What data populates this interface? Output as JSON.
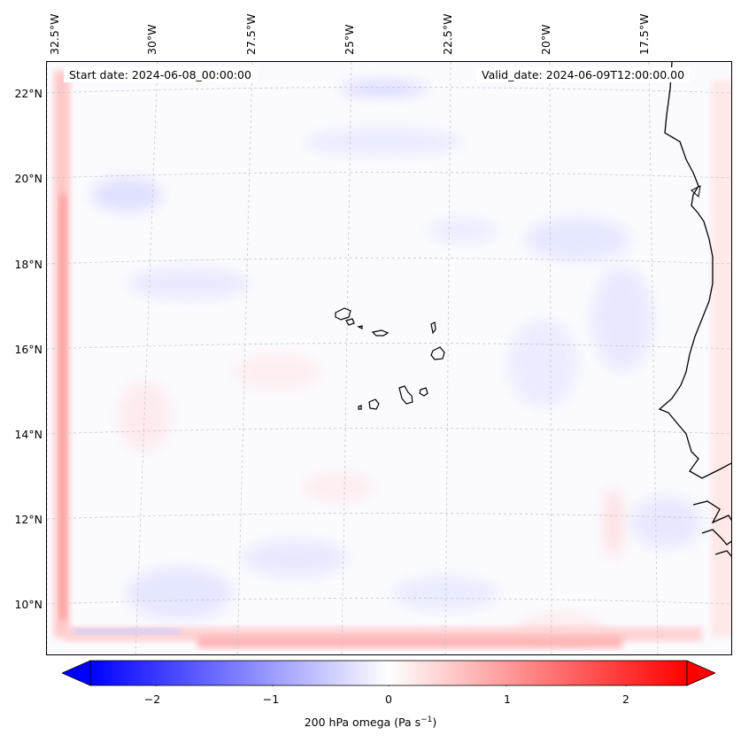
{
  "map": {
    "start_date_label": "Start date: 2024-06-08_00:00:00",
    "valid_date_label": "Valid_date: 2024-06-09T12:00:00.00",
    "lon_labels": [
      "32.5°W",
      "30°W",
      "27.5°W",
      "25°W",
      "22.5°W",
      "20°W",
      "17.5°W"
    ],
    "lat_labels": [
      "22°N",
      "20°N",
      "18°N",
      "16°N",
      "14°N",
      "12°N",
      "10°N"
    ],
    "features": [
      "cape-verde-islands",
      "west-africa-coastline"
    ]
  },
  "colorbar": {
    "ticks": [
      "−2",
      "−1",
      "0",
      "1",
      "2"
    ],
    "label_prefix": "200 hPa omega (Pa s",
    "label_exp": "−1",
    "label_suffix": ")",
    "min_color": "#0000ff",
    "mid_color": "#ffffff",
    "max_color": "#ff0000"
  }
}
